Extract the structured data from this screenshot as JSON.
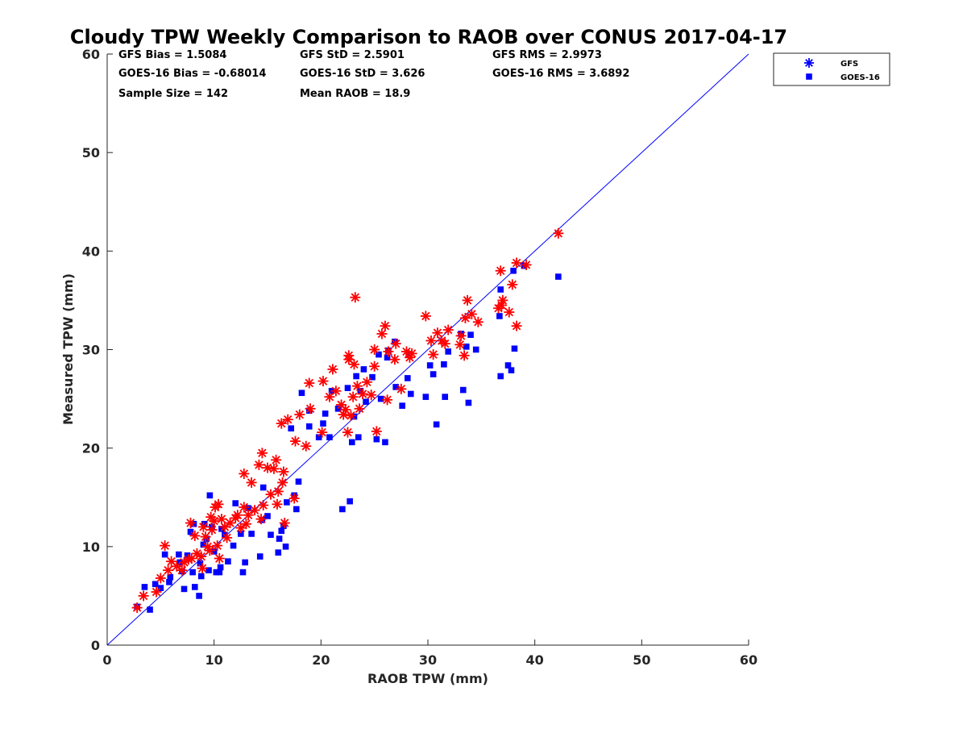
{
  "chart_data": {
    "type": "scatter",
    "title": "Cloudy TPW Weekly Comparison to RAOB over CONUS 2017-04-17",
    "xlabel": "RAOB TPW (mm)",
    "ylabel": "Measured TPW (mm)",
    "xlim": [
      0,
      60
    ],
    "ylim": [
      0,
      60
    ],
    "xticks": [
      "0",
      "10",
      "20",
      "30",
      "40",
      "50",
      "60"
    ],
    "yticks": [
      "0",
      "10",
      "20",
      "30",
      "40",
      "50",
      "60"
    ],
    "grid": false,
    "legend_position": "top-right outside",
    "reference_line": {
      "x": [
        0,
        60
      ],
      "y": [
        0,
        60
      ],
      "color": "#0000ff"
    },
    "stats": [
      [
        "GFS Bias = 1.5084",
        "GFS StD = 2.5901",
        "GFS RMS = 2.9973"
      ],
      [
        "GOES-16 Bias = -0.68014",
        "GOES-16 StD = 3.626",
        "GOES-16 RMS = 3.6892"
      ],
      [
        "Sample Size = 142",
        "Mean RAOB = 18.9",
        ""
      ]
    ],
    "series": [
      {
        "name": "GFS",
        "marker": "asterisk",
        "color": "#ff0000",
        "legend_color": "#0000ff",
        "points": [
          [
            2.8,
            3.8
          ],
          [
            3.4,
            5.0
          ],
          [
            4.6,
            5.4
          ],
          [
            5.0,
            6.8
          ],
          [
            5.4,
            10.1
          ],
          [
            5.7,
            7.6
          ],
          [
            6.0,
            8.5
          ],
          [
            6.5,
            8.0
          ],
          [
            7.0,
            7.6
          ],
          [
            7.2,
            8.4
          ],
          [
            7.6,
            8.7
          ],
          [
            7.8,
            12.4
          ],
          [
            7.9,
            8.8
          ],
          [
            8.2,
            11.1
          ],
          [
            8.4,
            9.3
          ],
          [
            8.8,
            9.0
          ],
          [
            8.9,
            7.8
          ],
          [
            9.0,
            12.0
          ],
          [
            9.2,
            11.0
          ],
          [
            9.4,
            10.0
          ],
          [
            9.6,
            9.6
          ],
          [
            9.7,
            13.0
          ],
          [
            9.8,
            11.7
          ],
          [
            10.0,
            12.6
          ],
          [
            10.1,
            14.0
          ],
          [
            10.3,
            10.1
          ],
          [
            10.4,
            14.3
          ],
          [
            10.5,
            8.8
          ],
          [
            10.7,
            12.8
          ],
          [
            11.0,
            12.0
          ],
          [
            11.2,
            10.9
          ],
          [
            11.5,
            12.4
          ],
          [
            12.0,
            12.9
          ],
          [
            12.2,
            13.2
          ],
          [
            12.5,
            11.9
          ],
          [
            12.8,
            14.0
          ],
          [
            12.8,
            17.4
          ],
          [
            13.0,
            12.3
          ],
          [
            13.2,
            13.2
          ],
          [
            13.5,
            16.5
          ],
          [
            13.8,
            13.7
          ],
          [
            14.2,
            18.3
          ],
          [
            14.4,
            12.8
          ],
          [
            14.5,
            19.5
          ],
          [
            14.6,
            14.2
          ],
          [
            15.0,
            18.0
          ],
          [
            15.3,
            15.3
          ],
          [
            15.6,
            17.9
          ],
          [
            15.8,
            18.8
          ],
          [
            15.9,
            14.3
          ],
          [
            16.0,
            15.6
          ],
          [
            16.3,
            22.5
          ],
          [
            16.4,
            16.5
          ],
          [
            16.5,
            17.6
          ],
          [
            16.6,
            12.4
          ],
          [
            16.9,
            22.9
          ],
          [
            17.5,
            14.9
          ],
          [
            17.6,
            20.7
          ],
          [
            18.0,
            23.4
          ],
          [
            18.6,
            20.2
          ],
          [
            18.9,
            26.6
          ],
          [
            19.0,
            24.0
          ],
          [
            20.1,
            21.6
          ],
          [
            20.2,
            26.8
          ],
          [
            20.8,
            25.2
          ],
          [
            21.1,
            28.0
          ],
          [
            21.4,
            25.8
          ],
          [
            21.9,
            24.4
          ],
          [
            22.1,
            23.4
          ],
          [
            22.3,
            23.9
          ],
          [
            22.5,
            21.6
          ],
          [
            22.6,
            29.0
          ],
          [
            22.6,
            29.4
          ],
          [
            22.8,
            23.3
          ],
          [
            23.0,
            25.2
          ],
          [
            23.1,
            28.5
          ],
          [
            23.2,
            35.3
          ],
          [
            23.4,
            26.3
          ],
          [
            23.6,
            24.0
          ],
          [
            23.9,
            25.5
          ],
          [
            24.3,
            26.7
          ],
          [
            24.7,
            25.4
          ],
          [
            25.0,
            28.3
          ],
          [
            25.0,
            30.0
          ],
          [
            25.2,
            21.7
          ],
          [
            25.7,
            31.6
          ],
          [
            26.0,
            32.4
          ],
          [
            26.2,
            24.9
          ],
          [
            26.3,
            29.8
          ],
          [
            26.9,
            29.0
          ],
          [
            27.0,
            30.6
          ],
          [
            27.5,
            26.0
          ],
          [
            28.0,
            29.8
          ],
          [
            28.3,
            29.2
          ],
          [
            28.5,
            29.6
          ],
          [
            29.8,
            33.4
          ],
          [
            30.3,
            30.9
          ],
          [
            30.5,
            29.5
          ],
          [
            30.9,
            31.7
          ],
          [
            31.3,
            30.9
          ],
          [
            31.6,
            30.6
          ],
          [
            31.9,
            32.0
          ],
          [
            33.0,
            30.5
          ],
          [
            33.1,
            31.4
          ],
          [
            33.4,
            29.4
          ],
          [
            33.5,
            33.2
          ],
          [
            33.7,
            35.0
          ],
          [
            34.1,
            33.6
          ],
          [
            34.7,
            32.8
          ],
          [
            36.6,
            34.2
          ],
          [
            36.8,
            38.0
          ],
          [
            36.9,
            34.5
          ],
          [
            37.0,
            35.0
          ],
          [
            37.6,
            33.8
          ],
          [
            37.9,
            36.6
          ],
          [
            38.3,
            32.4
          ],
          [
            38.3,
            38.8
          ],
          [
            39.2,
            38.6
          ],
          [
            42.2,
            41.8
          ]
        ]
      },
      {
        "name": "GOES-16",
        "marker": "square",
        "color": "#0000ff",
        "legend_color": "#0000ff",
        "points": [
          [
            2.8,
            3.9
          ],
          [
            3.5,
            5.9
          ],
          [
            4.0,
            3.6
          ],
          [
            4.5,
            6.2
          ],
          [
            5.0,
            5.8
          ],
          [
            5.4,
            9.2
          ],
          [
            5.8,
            6.4
          ],
          [
            5.9,
            6.9
          ],
          [
            6.7,
            9.2
          ],
          [
            6.8,
            8.4
          ],
          [
            7.0,
            7.5
          ],
          [
            7.2,
            5.7
          ],
          [
            7.5,
            9.1
          ],
          [
            7.8,
            11.5
          ],
          [
            8.0,
            7.4
          ],
          [
            8.1,
            12.3
          ],
          [
            8.2,
            5.9
          ],
          [
            8.6,
            5.0
          ],
          [
            8.7,
            8.3
          ],
          [
            8.8,
            7.0
          ],
          [
            9.0,
            10.2
          ],
          [
            9.1,
            12.3
          ],
          [
            9.3,
            10.8
          ],
          [
            9.5,
            7.6
          ],
          [
            9.6,
            15.2
          ],
          [
            9.8,
            12.0
          ],
          [
            10.0,
            9.5
          ],
          [
            10.2,
            7.4
          ],
          [
            10.5,
            7.4
          ],
          [
            10.6,
            7.9
          ],
          [
            10.7,
            11.8
          ],
          [
            11.0,
            11.2
          ],
          [
            11.3,
            8.5
          ],
          [
            11.8,
            10.1
          ],
          [
            12.0,
            14.4
          ],
          [
            12.5,
            11.3
          ],
          [
            12.7,
            7.4
          ],
          [
            12.9,
            8.4
          ],
          [
            13.2,
            13.9
          ],
          [
            13.5,
            11.3
          ],
          [
            14.3,
            9.0
          ],
          [
            14.5,
            12.7
          ],
          [
            14.6,
            16.0
          ],
          [
            15.0,
            13.1
          ],
          [
            15.3,
            11.2
          ],
          [
            16.0,
            9.4
          ],
          [
            16.1,
            10.8
          ],
          [
            16.3,
            11.6
          ],
          [
            16.5,
            12.1
          ],
          [
            16.7,
            10.0
          ],
          [
            16.8,
            14.5
          ],
          [
            17.2,
            22.0
          ],
          [
            17.5,
            15.2
          ],
          [
            17.7,
            13.8
          ],
          [
            17.9,
            16.6
          ],
          [
            18.2,
            25.6
          ],
          [
            18.9,
            22.2
          ],
          [
            18.9,
            23.8
          ],
          [
            19.8,
            21.1
          ],
          [
            20.2,
            22.5
          ],
          [
            20.4,
            23.5
          ],
          [
            20.8,
            21.1
          ],
          [
            21.0,
            25.8
          ],
          [
            21.6,
            24.0
          ],
          [
            22.0,
            13.8
          ],
          [
            22.5,
            26.1
          ],
          [
            22.7,
            14.6
          ],
          [
            22.9,
            20.6
          ],
          [
            23.1,
            23.2
          ],
          [
            23.3,
            27.3
          ],
          [
            23.5,
            21.1
          ],
          [
            23.7,
            25.8
          ],
          [
            24.0,
            28.0
          ],
          [
            24.2,
            24.7
          ],
          [
            24.8,
            27.2
          ],
          [
            25.2,
            20.9
          ],
          [
            25.4,
            29.5
          ],
          [
            25.6,
            25.0
          ],
          [
            26.0,
            20.6
          ],
          [
            26.2,
            29.2
          ],
          [
            26.3,
            29.9
          ],
          [
            26.9,
            30.8
          ],
          [
            27.0,
            26.2
          ],
          [
            27.6,
            24.3
          ],
          [
            28.1,
            27.1
          ],
          [
            28.2,
            29.5
          ],
          [
            28.4,
            25.5
          ],
          [
            29.8,
            25.2
          ],
          [
            30.2,
            28.4
          ],
          [
            30.5,
            27.5
          ],
          [
            30.8,
            22.4
          ],
          [
            31.5,
            28.5
          ],
          [
            31.6,
            25.2
          ],
          [
            31.9,
            29.8
          ],
          [
            33.1,
            31.6
          ],
          [
            33.3,
            25.9
          ],
          [
            33.6,
            30.3
          ],
          [
            33.8,
            24.6
          ],
          [
            34.0,
            31.5
          ],
          [
            34.5,
            30.0
          ],
          [
            36.7,
            33.4
          ],
          [
            36.8,
            36.1
          ],
          [
            36.8,
            27.3
          ],
          [
            37.5,
            28.4
          ],
          [
            37.8,
            27.9
          ],
          [
            38.0,
            38.0
          ],
          [
            38.1,
            30.1
          ],
          [
            39.0,
            38.5
          ],
          [
            42.2,
            37.4
          ]
        ]
      }
    ]
  }
}
